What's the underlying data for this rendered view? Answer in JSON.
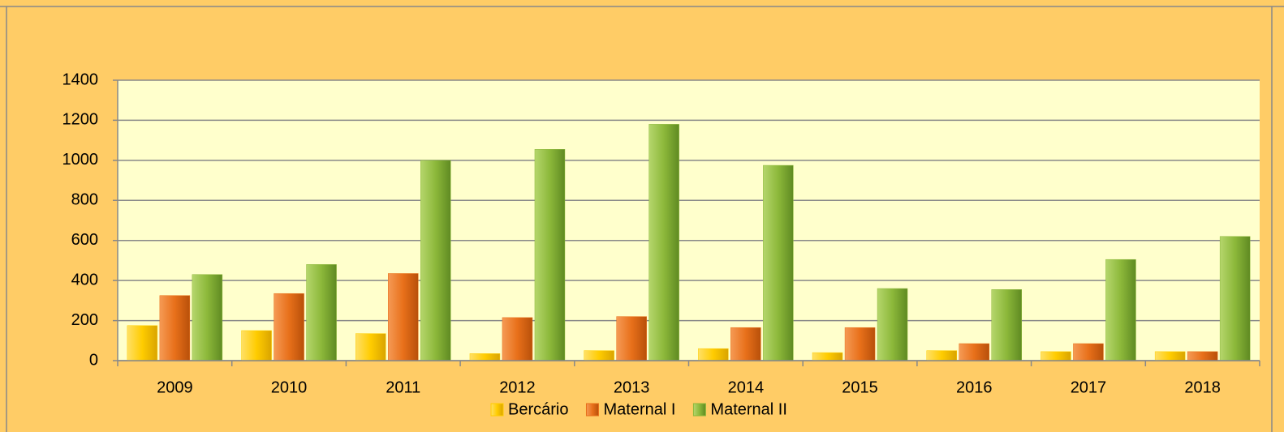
{
  "chart_data": {
    "type": "bar",
    "categories": [
      "2009",
      "2010",
      "2011",
      "2012",
      "2013",
      "2014",
      "2015",
      "2016",
      "2017",
      "2018"
    ],
    "series": [
      {
        "name": "Bercário",
        "color": "#ffcc00",
        "values": [
          175,
          150,
          135,
          35,
          50,
          60,
          40,
          50,
          45,
          45
        ]
      },
      {
        "name": "Maternal I",
        "color": "#e8701a",
        "values": [
          325,
          335,
          435,
          215,
          220,
          165,
          165,
          85,
          85,
          45
        ]
      },
      {
        "name": "Maternal II",
        "color": "#8cb83a",
        "values": [
          430,
          480,
          1000,
          1055,
          1180,
          975,
          360,
          355,
          505,
          620
        ]
      }
    ],
    "ylim": [
      0,
      1400
    ],
    "yticks": [
      0,
      200,
      400,
      600,
      800,
      1000,
      1200,
      1400
    ],
    "grid": true,
    "legend": "bottom"
  }
}
